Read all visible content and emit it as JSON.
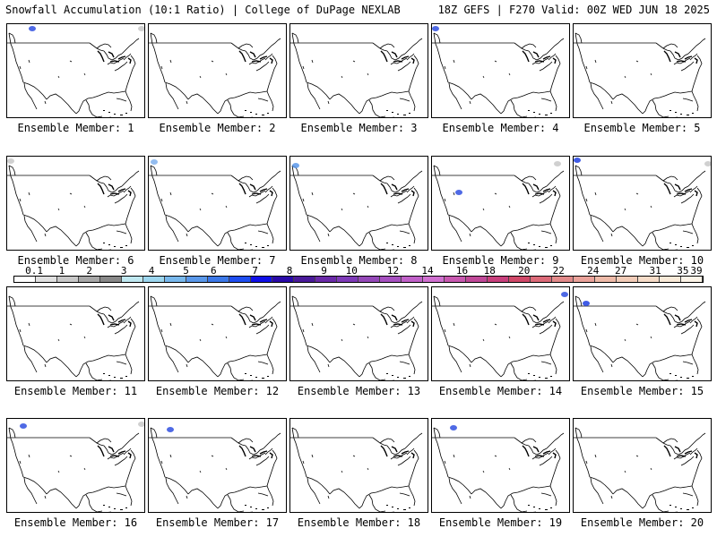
{
  "header": {
    "title_left": "Snowfall Accumulation (10:1 Ratio) | College of DuPage NEXLAB",
    "title_right": "18Z GEFS | F270 Valid: 00Z WED JUN 18 2025"
  },
  "scale": {
    "labels": [
      "0.1",
      "1",
      "2",
      "3",
      "4",
      "5",
      "6",
      "7",
      "8",
      "9",
      "10",
      "12",
      "14",
      "16",
      "18",
      "20",
      "22",
      "24",
      "27",
      "31",
      "35",
      "39"
    ],
    "colors": [
      "#ffffff",
      "#e0e0e0",
      "#c8c8c8",
      "#a8a8a8",
      "#888888",
      "#bfe8f0",
      "#9cd6ee",
      "#78b8ec",
      "#5a98ea",
      "#3c78e8",
      "#1f4ef0",
      "#1010e8",
      "#2a0aa8",
      "#4a1a9a",
      "#6a2aa8",
      "#7e3ab8",
      "#9448b8",
      "#a650c0",
      "#c060c8",
      "#d070d0",
      "#c858b0",
      "#c04898",
      "#c8407c",
      "#d04868",
      "#dc6a78",
      "#e28a8a",
      "#eaa29a",
      "#eebaa8",
      "#f2ccb8",
      "#f6dcc8",
      "#f9ead8",
      "#fcf4e8"
    ]
  },
  "members": [
    {
      "label": "Ensemble Member: 1"
    },
    {
      "label": "Ensemble Member: 2"
    },
    {
      "label": "Ensemble Member: 3"
    },
    {
      "label": "Ensemble Member: 4"
    },
    {
      "label": "Ensemble Member: 5"
    },
    {
      "label": "Ensemble Member: 6"
    },
    {
      "label": "Ensemble Member: 7"
    },
    {
      "label": "Ensemble Member: 8"
    },
    {
      "label": "Ensemble Member: 9"
    },
    {
      "label": "Ensemble Member: 10"
    },
    {
      "label": "Ensemble Member: 11"
    },
    {
      "label": "Ensemble Member: 12"
    },
    {
      "label": "Ensemble Member: 13"
    },
    {
      "label": "Ensemble Member: 14"
    },
    {
      "label": "Ensemble Member: 15"
    },
    {
      "label": "Ensemble Member: 16"
    },
    {
      "label": "Ensemble Member: 17"
    },
    {
      "label": "Ensemble Member: 18"
    },
    {
      "label": "Ensemble Member: 19"
    },
    {
      "label": "Ensemble Member: 20"
    }
  ]
}
